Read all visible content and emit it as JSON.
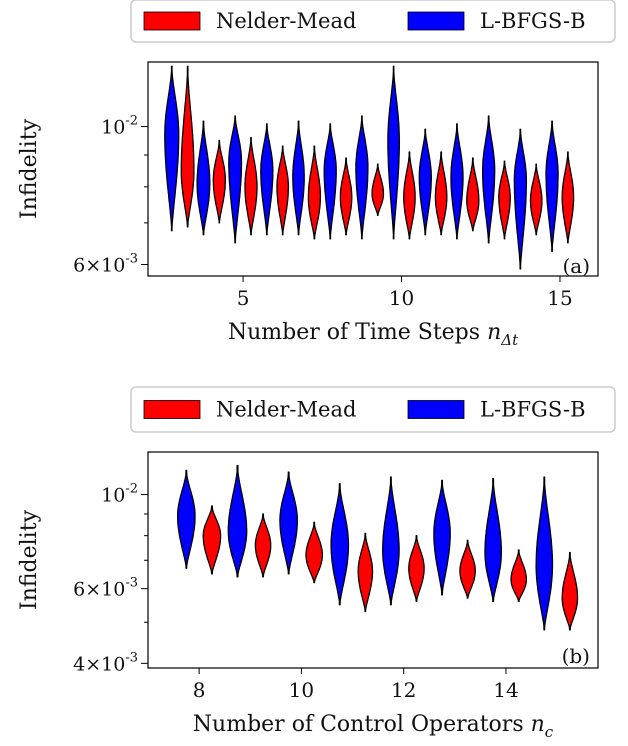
{
  "colors": {
    "nelder_mead": "#ff0000",
    "l_bfgs_b": "#0000ff"
  },
  "chart_data": [
    {
      "panel": "(a)",
      "type": "violin",
      "xlabel": "Number of Time Steps",
      "xlabel_symbol": "n",
      "xlabel_subscript": "Δt",
      "ylabel": "Infidelity",
      "yscale": "log",
      "xlim": [
        2.0,
        16.2
      ],
      "ylim": [
        0.00575,
        0.0127
      ],
      "x_ticks": [
        5,
        10,
        15
      ],
      "y_ticks": [
        {
          "value": 0.006,
          "mant": "6",
          "exp": "-3"
        },
        {
          "value": 0.01,
          "mant": "10",
          "exp": "-2"
        }
      ],
      "y_minor": [
        0.007,
        0.008,
        0.009
      ],
      "legend": [
        {
          "name": "Nelder-Mead",
          "color": "#ff0000"
        },
        {
          "name": "L-BFGS-B",
          "color": "#0000ff"
        }
      ],
      "series": [
        {
          "name": "L-BFGS-B",
          "color": "#0000ff",
          "violins": [
            {
              "x": 2.75,
              "min": 0.0068,
              "max": 0.0125,
              "peak": 0.0097,
              "hw": 0.22
            },
            {
              "x": 3.75,
              "min": 0.0067,
              "max": 0.0102,
              "peak": 0.0081,
              "hw": 0.2
            },
            {
              "x": 4.75,
              "min": 0.0065,
              "max": 0.0104,
              "peak": 0.0088,
              "hw": 0.2
            },
            {
              "x": 5.75,
              "min": 0.0067,
              "max": 0.0101,
              "peak": 0.0085,
              "hw": 0.19
            },
            {
              "x": 6.75,
              "min": 0.0067,
              "max": 0.0102,
              "peak": 0.0083,
              "hw": 0.18
            },
            {
              "x": 7.75,
              "min": 0.0066,
              "max": 0.0101,
              "peak": 0.0085,
              "hw": 0.19
            },
            {
              "x": 8.75,
              "min": 0.0066,
              "max": 0.0104,
              "peak": 0.0086,
              "hw": 0.19
            },
            {
              "x": 9.75,
              "min": 0.0066,
              "max": 0.0125,
              "peak": 0.0095,
              "hw": 0.18
            },
            {
              "x": 10.75,
              "min": 0.0067,
              "max": 0.0099,
              "peak": 0.0083,
              "hw": 0.19
            },
            {
              "x": 11.75,
              "min": 0.0066,
              "max": 0.0101,
              "peak": 0.0083,
              "hw": 0.19
            },
            {
              "x": 12.75,
              "min": 0.0065,
              "max": 0.0104,
              "peak": 0.0085,
              "hw": 0.19
            },
            {
              "x": 13.75,
              "min": 0.0059,
              "max": 0.0099,
              "peak": 0.0082,
              "hw": 0.19
            },
            {
              "x": 14.75,
              "min": 0.0063,
              "max": 0.0102,
              "peak": 0.0084,
              "hw": 0.19
            }
          ]
        },
        {
          "name": "Nelder-Mead",
          "color": "#ff0000",
          "violins": [
            {
              "x": 3.25,
              "min": 0.0069,
              "max": 0.0125,
              "peak": 0.0085,
              "hw": 0.2
            },
            {
              "x": 4.25,
              "min": 0.007,
              "max": 0.0095,
              "peak": 0.0082,
              "hw": 0.19
            },
            {
              "x": 5.25,
              "min": 0.0067,
              "max": 0.0096,
              "peak": 0.008,
              "hw": 0.19
            },
            {
              "x": 6.25,
              "min": 0.0067,
              "max": 0.0093,
              "peak": 0.008,
              "hw": 0.18
            },
            {
              "x": 7.25,
              "min": 0.0066,
              "max": 0.0093,
              "peak": 0.0077,
              "hw": 0.19
            },
            {
              "x": 8.25,
              "min": 0.0067,
              "max": 0.0089,
              "peak": 0.0077,
              "hw": 0.18
            },
            {
              "x": 9.25,
              "min": 0.0072,
              "max": 0.0087,
              "peak": 0.0078,
              "hw": 0.18
            },
            {
              "x": 10.25,
              "min": 0.0066,
              "max": 0.0091,
              "peak": 0.0077,
              "hw": 0.18
            },
            {
              "x": 11.25,
              "min": 0.0067,
              "max": 0.0091,
              "peak": 0.0077,
              "hw": 0.18
            },
            {
              "x": 12.25,
              "min": 0.0068,
              "max": 0.0089,
              "peak": 0.0076,
              "hw": 0.19
            },
            {
              "x": 13.25,
              "min": 0.0066,
              "max": 0.0088,
              "peak": 0.0077,
              "hw": 0.18
            },
            {
              "x": 14.25,
              "min": 0.0067,
              "max": 0.0087,
              "peak": 0.0076,
              "hw": 0.18
            },
            {
              "x": 15.25,
              "min": 0.0065,
              "max": 0.0091,
              "peak": 0.0077,
              "hw": 0.18
            }
          ]
        }
      ]
    },
    {
      "panel": "(b)",
      "type": "violin",
      "xlabel": "Number of Control Operators",
      "xlabel_symbol": "n",
      "xlabel_subscript": "c",
      "ylabel": "Infidelity",
      "yscale": "log",
      "xlim": [
        7.0,
        15.8
      ],
      "ylim": [
        0.0039,
        0.0126
      ],
      "x_ticks": [
        8,
        10,
        12,
        14
      ],
      "y_ticks": [
        {
          "value": 0.004,
          "mant": "4",
          "exp": "-3"
        },
        {
          "value": 0.006,
          "mant": "6",
          "exp": "-3"
        },
        {
          "value": 0.01,
          "mant": "10",
          "exp": "-2"
        }
      ],
      "y_minor": [
        0.005,
        0.007,
        0.008,
        0.009
      ],
      "legend": [
        {
          "name": "Nelder-Mead",
          "color": "#ff0000"
        },
        {
          "name": "L-BFGS-B",
          "color": "#0000ff"
        }
      ],
      "series": [
        {
          "name": "L-BFGS-B",
          "color": "#0000ff",
          "violins": [
            {
              "x": 7.75,
              "min": 0.0067,
              "max": 0.0114,
              "peak": 0.0089,
              "hw": 0.17
            },
            {
              "x": 8.75,
              "min": 0.0064,
              "max": 0.0117,
              "peak": 0.0082,
              "hw": 0.18
            },
            {
              "x": 9.75,
              "min": 0.0065,
              "max": 0.0113,
              "peak": 0.0087,
              "hw": 0.17
            },
            {
              "x": 10.75,
              "min": 0.0055,
              "max": 0.0106,
              "peak": 0.0076,
              "hw": 0.17
            },
            {
              "x": 11.75,
              "min": 0.0055,
              "max": 0.011,
              "peak": 0.0074,
              "hw": 0.16
            },
            {
              "x": 12.75,
              "min": 0.0058,
              "max": 0.0108,
              "peak": 0.0081,
              "hw": 0.16
            },
            {
              "x": 13.75,
              "min": 0.0056,
              "max": 0.0109,
              "peak": 0.0073,
              "hw": 0.16
            },
            {
              "x": 14.75,
              "min": 0.0048,
              "max": 0.011,
              "peak": 0.0068,
              "hw": 0.16
            }
          ]
        },
        {
          "name": "Nelder-Mead",
          "color": "#ff0000",
          "violins": [
            {
              "x": 8.25,
              "min": 0.0065,
              "max": 0.0094,
              "peak": 0.008,
              "hw": 0.17
            },
            {
              "x": 9.25,
              "min": 0.0064,
              "max": 0.009,
              "peak": 0.0076,
              "hw": 0.15
            },
            {
              "x": 10.25,
              "min": 0.0062,
              "max": 0.0086,
              "peak": 0.0072,
              "hw": 0.16
            },
            {
              "x": 11.25,
              "min": 0.0053,
              "max": 0.0081,
              "peak": 0.0066,
              "hw": 0.14
            },
            {
              "x": 12.25,
              "min": 0.0056,
              "max": 0.008,
              "peak": 0.0067,
              "hw": 0.15
            },
            {
              "x": 13.25,
              "min": 0.0057,
              "max": 0.0078,
              "peak": 0.0066,
              "hw": 0.15
            },
            {
              "x": 14.25,
              "min": 0.0056,
              "max": 0.0074,
              "peak": 0.0063,
              "hw": 0.15
            },
            {
              "x": 15.25,
              "min": 0.0048,
              "max": 0.0073,
              "peak": 0.0057,
              "hw": 0.15
            }
          ]
        }
      ]
    }
  ]
}
